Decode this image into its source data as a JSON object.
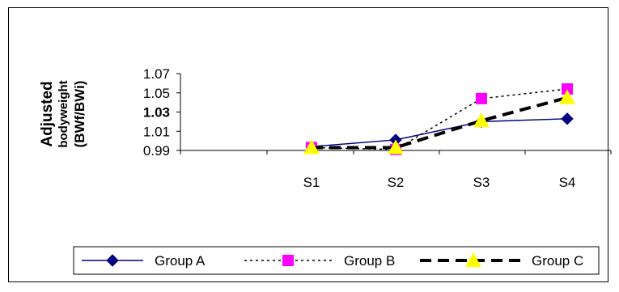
{
  "chart_data": {
    "type": "line",
    "categories": [
      "S1",
      "S2",
      "S3",
      "S4"
    ],
    "ylabel_line1": "Adjusted",
    "ylabel_line2": "bodyweight",
    "ylabel_line3": "(BWf/BWi)",
    "ytick_labels": [
      "0.99",
      "1.01",
      "1.03",
      "1.05",
      "1.07"
    ],
    "ylim": [
      0.99,
      1.07
    ],
    "series": [
      {
        "name": "Group A",
        "values": [
          0.994,
          1.001,
          1.02,
          1.023
        ],
        "color": "#000080",
        "dash": "solid",
        "marker": "diamond"
      },
      {
        "name": "Group B",
        "values": [
          0.993,
          0.991,
          1.044,
          1.054
        ],
        "color": "#000000",
        "dash": "dotted",
        "marker": "square",
        "marker_color": "#FF00FF"
      },
      {
        "name": "Group C",
        "values": [
          0.993,
          0.993,
          1.021,
          1.045
        ],
        "color": "#000000",
        "dash": "dashed",
        "marker": "triangle",
        "marker_color": "#FFFF00"
      }
    ]
  }
}
